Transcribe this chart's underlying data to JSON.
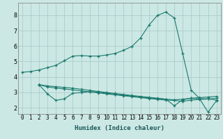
{
  "xlabel": "Humidex (Indice chaleur)",
  "bg_color": "#cce8e4",
  "grid_color": "#aacccc",
  "line_color": "#1a7a6e",
  "xlim": [
    -0.5,
    23.5
  ],
  "ylim": [
    1.6,
    8.8
  ],
  "yticks": [
    2,
    3,
    4,
    5,
    6,
    7,
    8
  ],
  "xticks": [
    0,
    1,
    2,
    3,
    4,
    5,
    6,
    7,
    8,
    9,
    10,
    11,
    12,
    13,
    14,
    15,
    16,
    17,
    18,
    19,
    20,
    21,
    22,
    23
  ],
  "line1_x": [
    0,
    1,
    2,
    3,
    4,
    5,
    6,
    7,
    8,
    9,
    10,
    11,
    12,
    13,
    14,
    15,
    16,
    17,
    18,
    19,
    20,
    21,
    22,
    23
  ],
  "line1_y": [
    4.3,
    4.35,
    4.45,
    4.6,
    4.75,
    5.05,
    5.35,
    5.38,
    5.35,
    5.35,
    5.42,
    5.52,
    5.72,
    5.98,
    6.52,
    7.35,
    7.98,
    8.2,
    7.82,
    5.5,
    3.15,
    2.6,
    2.58,
    2.5
  ],
  "line2_x": [
    2,
    3,
    4,
    5,
    6,
    7,
    8,
    9,
    10,
    11,
    12,
    13,
    14,
    15,
    16,
    17,
    18,
    19,
    20,
    21,
    22,
    23
  ],
  "line2_y": [
    3.5,
    2.9,
    2.48,
    2.58,
    2.95,
    2.98,
    3.05,
    3.02,
    2.95,
    2.88,
    2.82,
    2.76,
    2.7,
    2.65,
    2.6,
    2.56,
    2.14,
    2.52,
    2.62,
    2.58,
    1.72,
    2.47
  ],
  "line3_x": [
    2,
    3,
    4,
    5,
    6,
    7,
    8,
    9,
    10,
    11,
    12,
    13,
    14,
    15,
    16,
    17,
    18,
    19,
    20,
    21,
    22,
    23
  ],
  "line3_y": [
    3.5,
    3.35,
    3.28,
    3.22,
    3.16,
    3.1,
    3.03,
    2.97,
    2.9,
    2.84,
    2.78,
    2.72,
    2.66,
    2.6,
    2.55,
    2.5,
    2.48,
    2.42,
    2.5,
    2.54,
    2.57,
    2.62
  ],
  "line4_x": [
    2,
    3,
    4,
    5,
    6,
    7,
    8,
    9,
    10,
    11,
    12,
    13,
    14,
    15,
    16,
    17,
    18,
    19,
    20,
    21,
    22,
    23
  ],
  "line4_y": [
    3.5,
    3.42,
    3.37,
    3.32,
    3.27,
    3.2,
    3.13,
    3.06,
    2.99,
    2.93,
    2.86,
    2.8,
    2.74,
    2.68,
    2.62,
    2.56,
    2.52,
    2.56,
    2.62,
    2.66,
    2.7,
    2.74
  ]
}
